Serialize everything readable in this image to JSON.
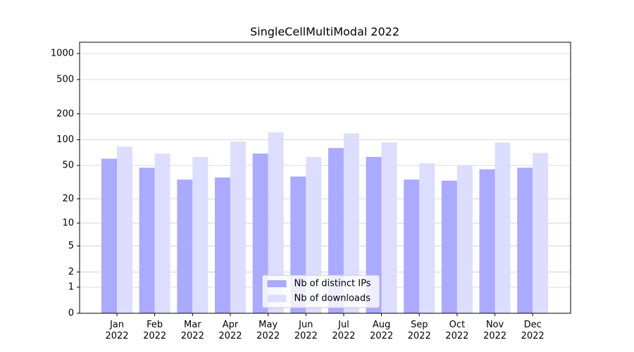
{
  "chart_data": {
    "type": "bar",
    "title": "SingleCellMultiModal 2022",
    "categories": [
      [
        "Jan",
        "2022"
      ],
      [
        "Feb",
        "2022"
      ],
      [
        "Mar",
        "2022"
      ],
      [
        "Apr",
        "2022"
      ],
      [
        "May",
        "2022"
      ],
      [
        "Jun",
        "2022"
      ],
      [
        "Jul",
        "2022"
      ],
      [
        "Aug",
        "2022"
      ],
      [
        "Sep",
        "2022"
      ],
      [
        "Oct",
        "2022"
      ],
      [
        "Nov",
        "2022"
      ],
      [
        "Dec",
        "2022"
      ]
    ],
    "series": [
      {
        "name": "Nb of distinct IPs",
        "color": "#aaaaff",
        "values": [
          60,
          47,
          34,
          36,
          69,
          37,
          80,
          63,
          34,
          33,
          45,
          47
        ]
      },
      {
        "name": "Nb of downloads",
        "color": "#ddddff",
        "values": [
          83,
          69,
          63,
          95,
          122,
          63,
          119,
          93,
          53,
          50,
          93,
          70
        ]
      }
    ],
    "yscale": "log1p",
    "ylim": [
      0,
      1350
    ],
    "yticks": [
      0,
      1,
      2,
      5,
      10,
      20,
      50,
      100,
      200,
      500,
      1000
    ],
    "grid": true,
    "legend": "lower center"
  }
}
